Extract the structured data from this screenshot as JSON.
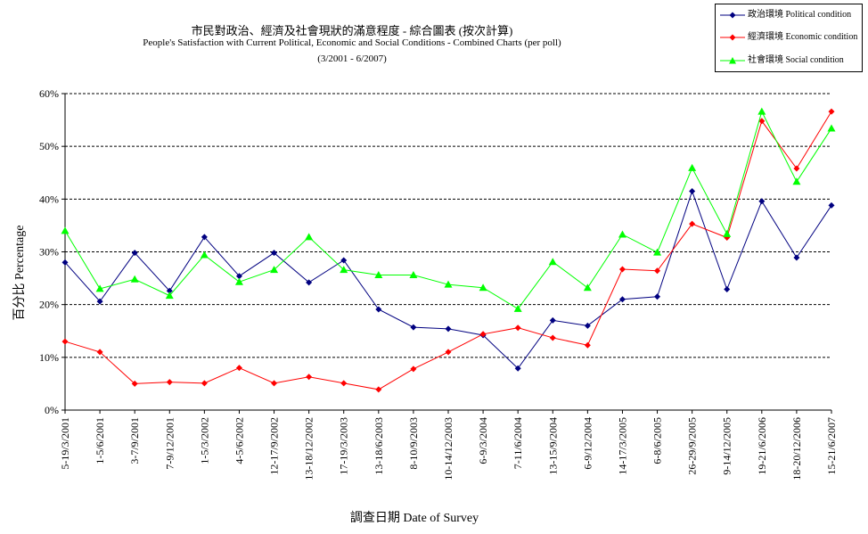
{
  "chart_data": {
    "type": "line",
    "title": "市民對政治、經濟及社會現狀的滿意程度 - 綜合圖表 (按次計算)",
    "subtitle": "People's Satisfaction with Current Political, Economic and Social Conditions - Combined Charts  (per poll)",
    "period": "(3/2001 - 6/2007)",
    "xlabel": "調查日期 Date of Survey",
    "ylabel": "百分比 Percentage",
    "ylim": [
      0,
      60
    ],
    "yticks": [
      "0%",
      "10%",
      "20%",
      "30%",
      "40%",
      "50%",
      "60%"
    ],
    "grid": "horizontal dashed",
    "legend_position": "top-right",
    "categories": [
      "5-19/3/2001",
      "1-5/6/2001",
      "3-7/9/2001",
      "7-9/12/2001",
      "1-5/3/2002",
      "4-5/6/2002",
      "12-17/9/2002",
      "13-18/12/2002",
      "17-19/3/2003",
      "13-18/6/2003",
      "8-10/9/2003",
      "10-14/12/2003",
      "6-9/3/2004",
      "7-11/6/2004",
      "13-15/9/2004",
      "6-9/12/2004",
      "14-17/3/2005",
      "6-8/6/2005",
      "26-29/9/2005",
      "9-14/12/2005",
      "19-21/6/2006",
      "18-20/12/2006",
      "15-21/6/2007"
    ],
    "series": [
      {
        "name": "政治環境 Political condition",
        "color": "#000080",
        "marker": "diamond",
        "values": [
          28,
          20.6,
          29.8,
          22.6,
          32.8,
          25.4,
          29.8,
          24.2,
          28.4,
          19.1,
          15.7,
          15.4,
          14.2,
          7.9,
          17.0,
          16.0,
          21.0,
          21.5,
          41.5,
          22.9,
          39.6,
          28.9,
          38.8
        ]
      },
      {
        "name": "經濟環境 Economic condition",
        "color": "#ff0000",
        "marker": "diamond",
        "values": [
          13.0,
          11.0,
          5.0,
          5.3,
          5.1,
          8.0,
          5.1,
          6.3,
          5.1,
          3.9,
          7.8,
          11.0,
          14.4,
          15.6,
          13.7,
          12.3,
          26.7,
          26.4,
          35.3,
          32.7,
          54.8,
          45.8,
          56.6
        ]
      },
      {
        "name": "社會環境 Social condition",
        "color": "#00ff00",
        "marker": "triangle",
        "values": [
          34.0,
          23.0,
          24.8,
          21.7,
          29.4,
          24.3,
          26.6,
          32.8,
          26.6,
          25.6,
          25.6,
          23.8,
          23.2,
          19.2,
          28.1,
          23.2,
          33.3,
          29.9,
          45.9,
          33.4,
          56.6,
          43.3,
          53.4
        ]
      }
    ]
  },
  "legend": {
    "items": [
      {
        "label": "政治環境 Political condition"
      },
      {
        "label": "經濟環境 Economic condition"
      },
      {
        "label": "社會環境 Social condition"
      }
    ]
  }
}
